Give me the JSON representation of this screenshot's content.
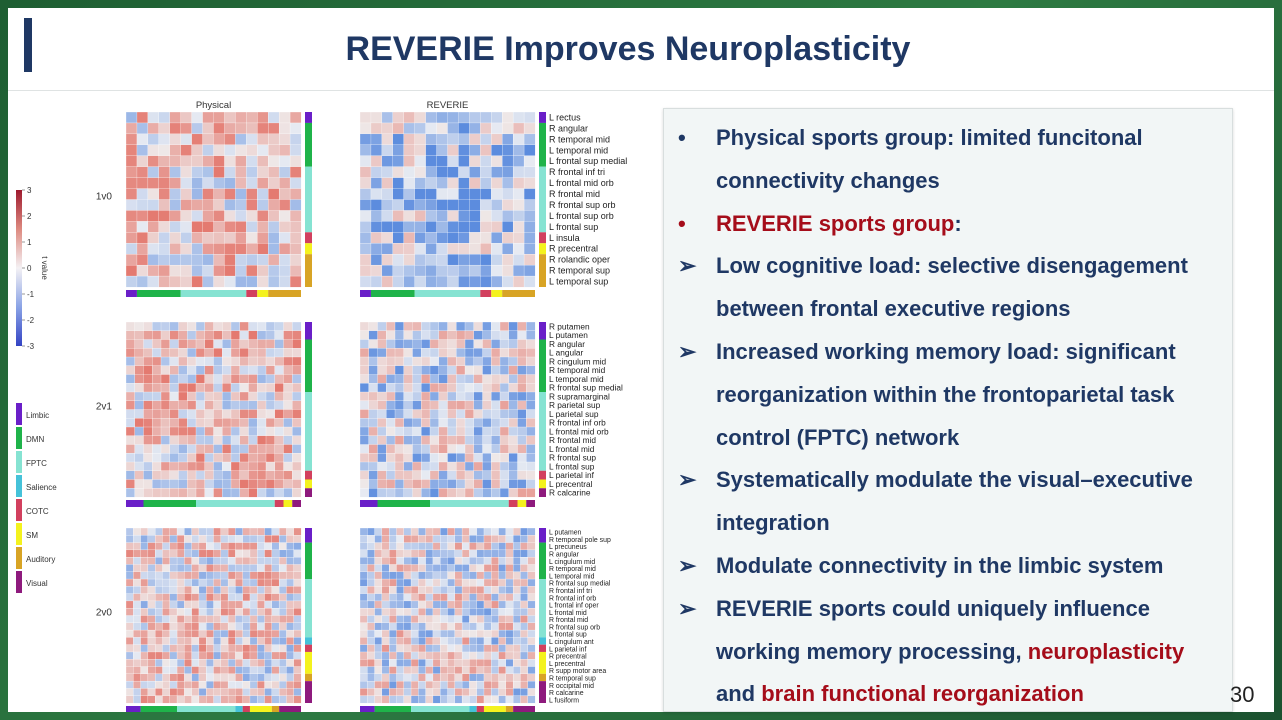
{
  "title": "REVERIE Improves Neuroplasticity",
  "heatmaps": {
    "columns": [
      "Physical",
      "REVERIE"
    ],
    "rows": [
      {
        "label": "1v0",
        "regions": [
          "L rectus",
          "R angular",
          "R temporal mid",
          "L temporal mid",
          "L frontal sup medial",
          "R frontal inf tri",
          "L frontal mid orb",
          "R frontal mid",
          "R frontal sup orb",
          "L frontal sup orb",
          "L frontal sup",
          "L insula",
          "R precentral",
          "R rolandic oper",
          "R temporal sup",
          "L temporal sup"
        ]
      },
      {
        "label": "2v1",
        "regions": [
          "R putamen",
          "L putamen",
          "R angular",
          "L angular",
          "R cingulum mid",
          "R temporal mid",
          "L temporal mid",
          "R frontal sup medial",
          "R supramarginal",
          "R parietal sup",
          "L parietal sup",
          "R frontal inf orb",
          "L frontal mid orb",
          "R frontal mid",
          "L frontal mid",
          "R frontal sup",
          "L frontal sup",
          "L parietal inf",
          "L precentral",
          "R calcarine"
        ]
      },
      {
        "label": "2v0",
        "regions": [
          "L putamen",
          "R temporal pole sup",
          "L precuneus",
          "R angular",
          "L cingulum mid",
          "R temporal mid",
          "L temporal mid",
          "R frontal sup medial",
          "R frontal inf tri",
          "R frontal inf orb",
          "L frontal inf oper",
          "L frontal mid",
          "R frontal mid",
          "R frontal sup orb",
          "L frontal sup",
          "L cingulum ant",
          "L parietal inf",
          "R precentral",
          "L precentral",
          "R supp motor area",
          "R temporal sup",
          "R occipital mid",
          "R calcarine",
          "L fusiform"
        ]
      }
    ]
  },
  "colorbar": {
    "label": "t value",
    "ticks": [
      3,
      2,
      1,
      0,
      -1,
      -2,
      -3
    ]
  },
  "legend": [
    {
      "name": "Limbic",
      "color": "#6a1fc8"
    },
    {
      "name": "DMN",
      "color": "#1fb34a"
    },
    {
      "name": "FPTC",
      "color": "#86e3d2"
    },
    {
      "name": "Salience",
      "color": "#45c2d9"
    },
    {
      "name": "COTC",
      "color": "#d2405e"
    },
    {
      "name": "SM",
      "color": "#f4f21e"
    },
    {
      "name": "Auditory",
      "color": "#d8a425"
    },
    {
      "name": "Visual",
      "color": "#8e1a7d"
    }
  ],
  "bullets": [
    {
      "marker": "•",
      "segments": [
        {
          "text": "Physical sports group: limited funcitonal connectivity changes",
          "emphasis": false
        }
      ]
    },
    {
      "marker": "•",
      "emphasis_marker": true,
      "segments": [
        {
          "text": "REVERIE sports group",
          "emphasis": true
        },
        {
          "text": ":",
          "emphasis": false
        }
      ]
    },
    {
      "marker": "➢",
      "segments": [
        {
          "text": "Low cognitive load: selective disengagement between frontal executive regions",
          "emphasis": false
        }
      ]
    },
    {
      "marker": "➢",
      "segments": [
        {
          "text": "Increased working memory load:  significant reorganization within the frontoparietal task control (FPTC) network",
          "emphasis": false
        }
      ]
    },
    {
      "marker": "➢",
      "segments": [
        {
          "text": "Systematically modulate the visual–executive integration",
          "emphasis": false
        }
      ]
    },
    {
      "marker": "➢",
      "segments": [
        {
          "text": "Modulate connectivity in the limbic system",
          "emphasis": false
        }
      ]
    },
    {
      "marker": "➢",
      "segments": [
        {
          "text": "REVERIE sports could uniquely influence working memory processing, ",
          "emphasis": false
        },
        {
          "text": "neuroplasticity",
          "emphasis": true
        },
        {
          "text": " and ",
          "emphasis": false
        },
        {
          "text": "brain functional reorganization",
          "emphasis": true
        }
      ]
    }
  ],
  "page_number": "30"
}
